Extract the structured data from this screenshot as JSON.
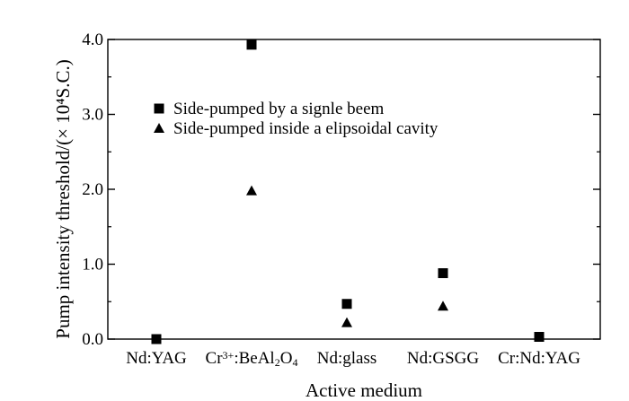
{
  "chart_data": {
    "type": "scatter",
    "xlabel": "Active medium",
    "ylabel": "Pump intensity threshold/(× 10⁴S.C.)",
    "ylim": [
      0,
      4
    ],
    "yticks": [
      "0.0",
      "1.0",
      "2.0",
      "3.0",
      "4.0"
    ],
    "categories": [
      {
        "parts": [
          {
            "t": "Nd:YAG"
          }
        ]
      },
      {
        "parts": [
          {
            "t": "Cr"
          },
          {
            "t": "3+",
            "s": "sup"
          },
          {
            "t": ":BeAl"
          },
          {
            "t": "2",
            "s": "sub"
          },
          {
            "t": "O"
          },
          {
            "t": "4",
            "s": "sub"
          }
        ]
      },
      {
        "parts": [
          {
            "t": "Nd:glass"
          }
        ]
      },
      {
        "parts": [
          {
            "t": "Nd:GSGG"
          }
        ]
      },
      {
        "parts": [
          {
            "t": "Cr:Nd:YAG"
          }
        ]
      }
    ],
    "series": [
      {
        "name": "Side-pumped by a signle beem",
        "marker": "square",
        "values": [
          0.0,
          3.93,
          0.47,
          0.88,
          0.03
        ]
      },
      {
        "name": "Side-pumped inside a elipsoidal cavity",
        "marker": "triangle",
        "values": [
          null,
          1.98,
          0.22,
          0.44,
          null
        ]
      }
    ],
    "legend_position": "top-left",
    "grid": false,
    "colors": {
      "marks": "#000000",
      "axis": "#000000"
    }
  }
}
